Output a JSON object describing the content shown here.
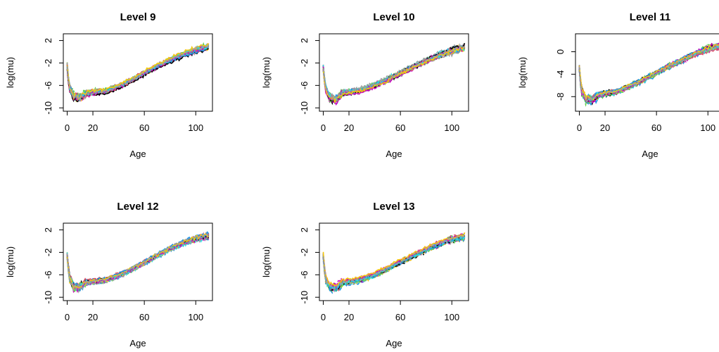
{
  "figure": {
    "type": "multi-panel line chart"
  },
  "colors": [
    "#000000",
    "#df536b",
    "#61d04f",
    "#2297e6",
    "#28e2e5",
    "#cd0bbc",
    "#f5c710",
    "#9e9e9e"
  ],
  "chart_data": [
    {
      "type": "line",
      "title": "Level 9",
      "xlabel": "Age",
      "ylabel": "log(mu)",
      "xticks": [
        "0",
        "20",
        "60",
        "100"
      ],
      "yticks": [
        "2",
        "-2",
        "-6",
        "-10"
      ],
      "xlim": [
        -3,
        113
      ],
      "ylim": [
        -10.6,
        3.2
      ],
      "x": [
        0,
        1,
        2,
        5,
        10,
        15,
        20,
        30,
        40,
        50,
        60,
        70,
        80,
        90,
        100,
        105,
        110
      ],
      "values": [
        -2.5,
        -5.0,
        -6.5,
        -8.0,
        -8.2,
        -7.5,
        -7.3,
        -7.0,
        -6.2,
        -5.1,
        -3.8,
        -2.6,
        -1.5,
        -0.5,
        0.3,
        0.6,
        0.9
      ],
      "series_count": 40
    },
    {
      "type": "line",
      "title": "Level 10",
      "xlabel": "Age",
      "ylabel": "log(mu)",
      "xticks": [
        "0",
        "20",
        "60",
        "100"
      ],
      "yticks": [
        "2",
        "-2",
        "-6",
        "-10"
      ],
      "xlim": [
        -3,
        113
      ],
      "ylim": [
        -10.6,
        3.2
      ],
      "x": [
        0,
        1,
        2,
        5,
        10,
        15,
        20,
        30,
        40,
        50,
        60,
        70,
        80,
        90,
        100,
        105,
        110
      ],
      "values": [
        -2.8,
        -5.0,
        -6.5,
        -8.2,
        -8.5,
        -7.3,
        -7.2,
        -6.8,
        -6.0,
        -5.0,
        -3.8,
        -2.7,
        -1.6,
        -0.6,
        0.2,
        0.5,
        0.7
      ],
      "series_count": 40
    },
    {
      "type": "line",
      "title": "Level 11",
      "xlabel": "Age",
      "ylabel": "log(mu)",
      "xticks": [
        "0",
        "20",
        "60",
        "100"
      ],
      "yticks": [
        "0",
        "-4",
        "-8"
      ],
      "xlim": [
        -3,
        113
      ],
      "ylim": [
        -10.6,
        3.2
      ],
      "x": [
        0,
        1,
        2,
        5,
        10,
        15,
        20,
        30,
        40,
        50,
        60,
        70,
        80,
        90,
        100,
        105,
        110
      ],
      "values": [
        -3.0,
        -5.5,
        -7.0,
        -8.5,
        -8.6,
        -7.7,
        -7.5,
        -7.1,
        -6.1,
        -5.0,
        -3.8,
        -2.6,
        -1.5,
        -0.4,
        0.5,
        0.8,
        1.0
      ],
      "series_count": 40
    },
    {
      "type": "line",
      "title": "Level 12",
      "xlabel": "Age",
      "ylabel": "log(mu)",
      "xticks": [
        "0",
        "20",
        "60",
        "100"
      ],
      "yticks": [
        "2",
        "-2",
        "-6",
        "-10"
      ],
      "xlim": [
        -3,
        113
      ],
      "ylim": [
        -10.6,
        3.2
      ],
      "x": [
        0,
        1,
        2,
        5,
        10,
        15,
        20,
        30,
        40,
        50,
        60,
        70,
        80,
        90,
        100,
        105,
        110
      ],
      "values": [
        -2.6,
        -5.0,
        -6.8,
        -8.2,
        -8.3,
        -7.4,
        -7.3,
        -7.0,
        -6.2,
        -5.1,
        -3.9,
        -2.6,
        -1.4,
        -0.4,
        0.4,
        0.7,
        0.8
      ],
      "series_count": 40
    },
    {
      "type": "line",
      "title": "Level 13",
      "xlabel": "Age",
      "ylabel": "log(mu)",
      "xticks": [
        "0",
        "20",
        "60",
        "100"
      ],
      "yticks": [
        "2",
        "-2",
        "-6",
        "-10"
      ],
      "xlim": [
        -3,
        113
      ],
      "ylim": [
        -10.6,
        3.2
      ],
      "x": [
        0,
        1,
        2,
        5,
        10,
        15,
        20,
        30,
        40,
        50,
        60,
        70,
        80,
        90,
        100,
        105,
        110
      ],
      "values": [
        -2.7,
        -5.0,
        -6.8,
        -8.3,
        -8.4,
        -7.5,
        -7.3,
        -6.9,
        -6.1,
        -5.0,
        -3.8,
        -2.7,
        -1.6,
        -0.6,
        0.3,
        0.5,
        0.7
      ],
      "series_count": 40
    }
  ]
}
